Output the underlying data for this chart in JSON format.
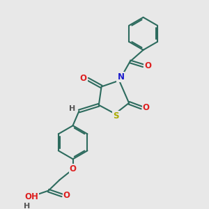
{
  "bg_color": "#e8e8e8",
  "bond_color": "#2d6b5e",
  "bond_lw": 1.5,
  "dbo": 0.08,
  "colors": {
    "O": "#dd2020",
    "N": "#1a1acc",
    "S": "#aaaa00",
    "H": "#555555",
    "C": "#2d6b5e"
  },
  "fs": 8.5,
  "fig_w": 3.0,
  "fig_h": 3.0,
  "dpi": 100
}
